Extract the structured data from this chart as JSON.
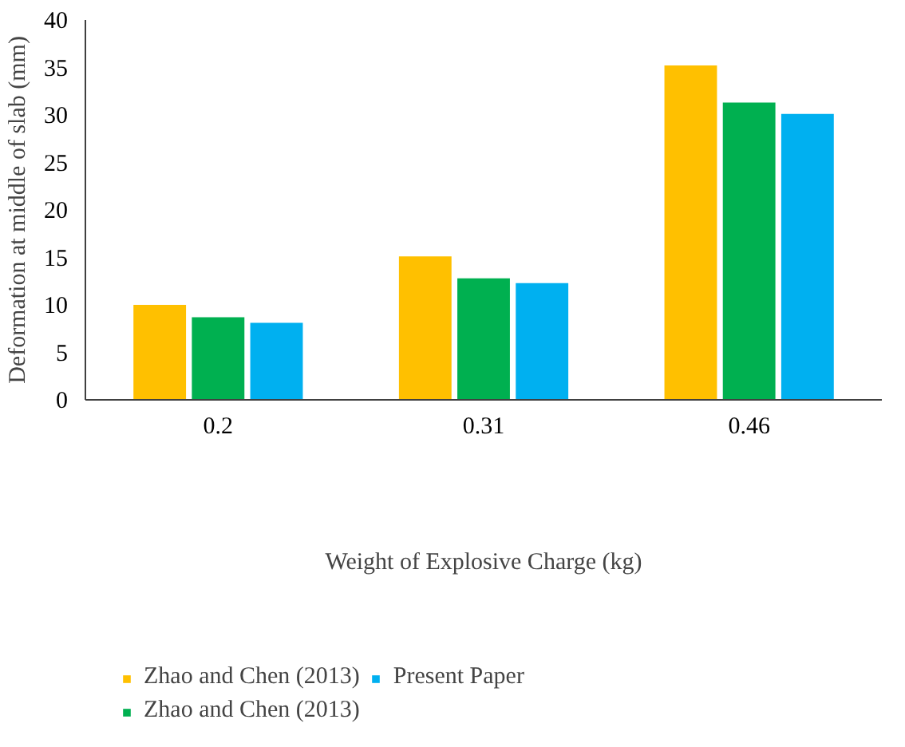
{
  "chart_data": {
    "type": "bar",
    "xlabel": "Weight of Explosive Charge (kg)",
    "ylabel": "Deformation at middle of slab (mm)",
    "categories": [
      "0.2",
      "0.31",
      "0.46"
    ],
    "series": [
      {
        "name": "Zhao and Chen (2013)",
        "color": "#ffc000",
        "values": [
          10.0,
          15.1,
          35.2
        ]
      },
      {
        "name": "Zhao and Chen (2013)",
        "color": "#00b050",
        "values": [
          8.7,
          12.8,
          31.3
        ]
      },
      {
        "name": "Present Paper",
        "color": "#00b0f0",
        "values": [
          8.1,
          12.3,
          30.1
        ]
      }
    ],
    "ylim": [
      0,
      40
    ],
    "yticks": [
      0,
      5,
      10,
      15,
      20,
      25,
      30,
      35,
      40
    ],
    "grid": false,
    "legend": "bottom"
  }
}
